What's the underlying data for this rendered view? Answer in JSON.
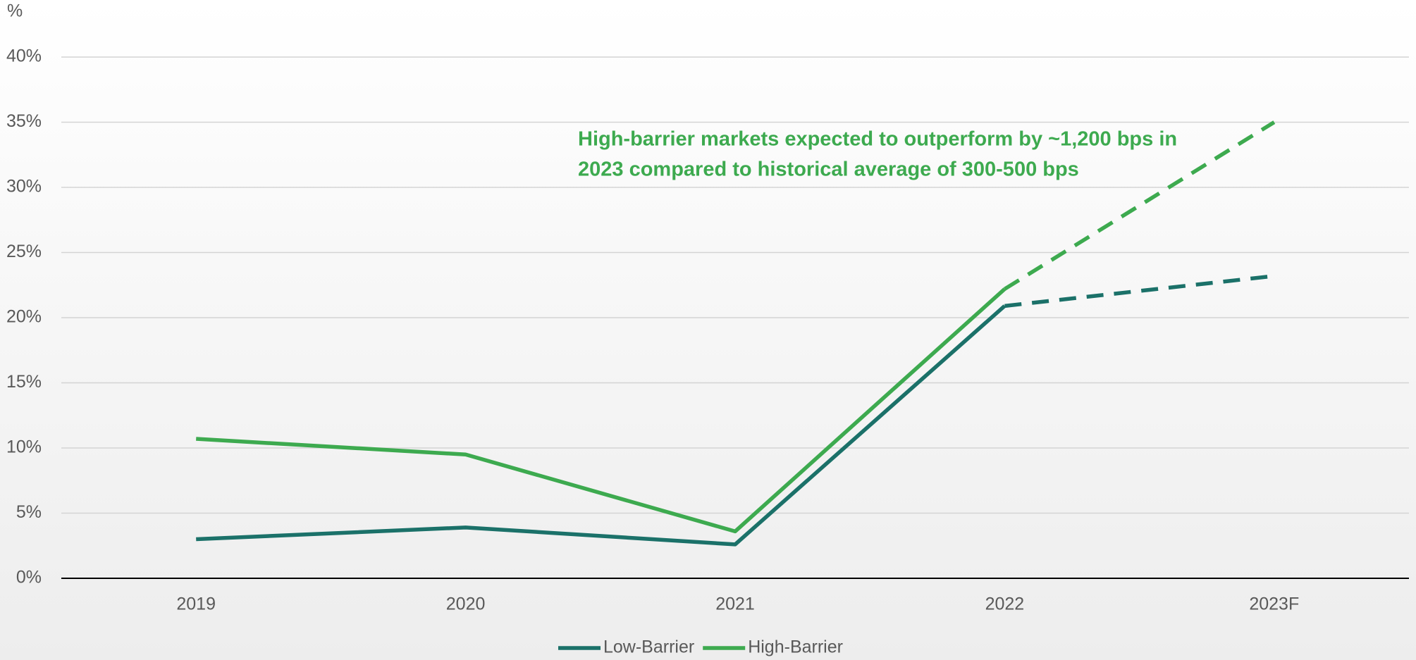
{
  "chart_data": {
    "type": "line",
    "y_axis_label": "%",
    "categories": [
      "2019",
      "2020",
      "2021",
      "2022",
      "2023F"
    ],
    "series": [
      {
        "name": "Low-Barrier",
        "color": "#1b7169",
        "values": [
          3.0,
          3.9,
          2.6,
          20.9,
          23.2
        ]
      },
      {
        "name": "High-Barrier",
        "color": "#3daa4f",
        "values": [
          10.7,
          9.5,
          3.6,
          22.2,
          35.0
        ]
      }
    ],
    "dashed_from_index": 3,
    "ylim": [
      0,
      40
    ],
    "yticks": [
      {
        "value": 0,
        "label": "0%"
      },
      {
        "value": 5,
        "label": "5%"
      },
      {
        "value": 10,
        "label": "10%"
      },
      {
        "value": 15,
        "label": "15%"
      },
      {
        "value": 20,
        "label": "20%"
      },
      {
        "value": 25,
        "label": "25%"
      },
      {
        "value": 30,
        "label": "30%"
      },
      {
        "value": 35,
        "label": "35%"
      },
      {
        "value": 40,
        "label": "40%"
      }
    ],
    "grid": true,
    "legend": "bottom",
    "annotation": [
      "High-barrier markets expected to outperform by ~1,200 bps in",
      "2023 compared to historical average of 300-500 bps"
    ]
  }
}
